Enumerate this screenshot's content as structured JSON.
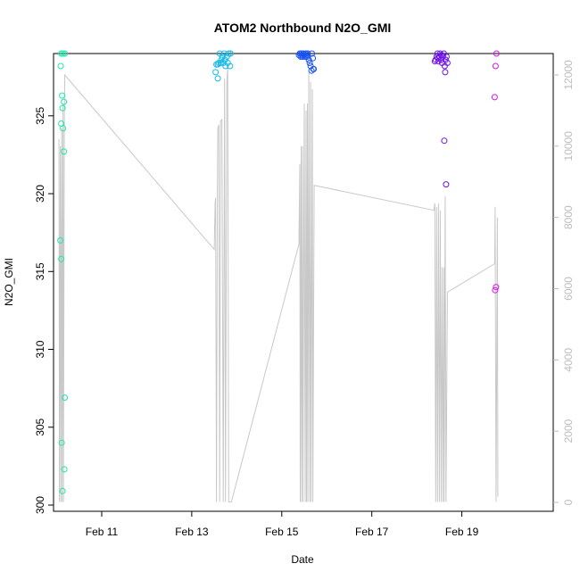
{
  "chart_data": {
    "type": "scatter",
    "title": "ATOM2 Northbound N2O_GMI",
    "xlabel": "Date",
    "ylabel": "N2O_GMI",
    "x_unit": "day of February 2017",
    "xlim": [
      9.93,
      21.03
    ],
    "ylim": [
      299.6,
      329.0
    ],
    "x_ticks": [
      {
        "value": 11,
        "label": "Feb 11"
      },
      {
        "value": 13,
        "label": "Feb 13"
      },
      {
        "value": 15,
        "label": "Feb 15"
      },
      {
        "value": 17,
        "label": "Feb 17"
      },
      {
        "value": 19,
        "label": "Feb 19"
      }
    ],
    "y_ticks": [
      300,
      305,
      310,
      315,
      320,
      325
    ],
    "y2_ticks": [
      0,
      2000,
      4000,
      6000,
      8000,
      10000,
      12000
    ],
    "y2lim": [
      -250,
      12600
    ],
    "grid": false,
    "legend": "none",
    "series": [
      {
        "color": "#1ee8a8",
        "points": [
          [
            10.08,
            317.0
          ],
          [
            10.1,
            315.8
          ],
          [
            10.11,
            304.0
          ],
          [
            10.13,
            300.9
          ],
          [
            10.17,
            302.3
          ],
          [
            10.18,
            306.9
          ],
          [
            10.1,
            324.5
          ],
          [
            10.13,
            325.5
          ],
          [
            10.16,
            325.9
          ],
          [
            10.12,
            326.3
          ],
          [
            10.09,
            328.2
          ],
          [
            10.1,
            329.0
          ],
          [
            10.14,
            329.0
          ],
          [
            10.18,
            329.0
          ],
          [
            10.16,
            322.7
          ],
          [
            10.14,
            324.2
          ]
        ]
      },
      {
        "color": "#14b8e8",
        "points": [
          [
            13.53,
            327.8
          ],
          [
            13.55,
            328.3
          ],
          [
            13.58,
            328.3
          ],
          [
            13.6,
            328.4
          ],
          [
            13.62,
            329.0
          ],
          [
            13.64,
            328.4
          ],
          [
            13.58,
            327.4
          ],
          [
            13.7,
            328.4
          ],
          [
            13.72,
            329.0
          ],
          [
            13.75,
            328.2
          ],
          [
            13.78,
            328.8
          ],
          [
            13.8,
            328.4
          ],
          [
            13.82,
            329.0
          ],
          [
            13.85,
            328.2
          ],
          [
            13.86,
            329.0
          ],
          [
            13.66,
            328.6
          ],
          [
            13.68,
            328.8
          ],
          [
            13.74,
            328.6
          ]
        ]
      },
      {
        "color": "#1852f0",
        "points": [
          [
            15.38,
            328.9
          ],
          [
            15.4,
            329.0
          ],
          [
            15.42,
            328.8
          ],
          [
            15.44,
            329.0
          ],
          [
            15.46,
            328.8
          ],
          [
            15.48,
            329.0
          ],
          [
            15.5,
            328.9
          ],
          [
            15.52,
            328.8
          ],
          [
            15.54,
            329.0
          ],
          [
            15.56,
            328.8
          ],
          [
            15.58,
            329.0
          ],
          [
            15.6,
            328.6
          ],
          [
            15.62,
            328.4
          ],
          [
            15.64,
            328.2
          ],
          [
            15.66,
            327.9
          ],
          [
            15.67,
            329.0
          ],
          [
            15.69,
            328.7
          ],
          [
            15.7,
            328.0
          ],
          [
            15.71,
            328.0
          ],
          [
            15.45,
            328.9
          ],
          [
            15.57,
            328.9
          ]
        ]
      },
      {
        "color": "#6e14e8",
        "points": [
          [
            18.4,
            328.5
          ],
          [
            18.42,
            328.6
          ],
          [
            18.44,
            328.8
          ],
          [
            18.46,
            329.0
          ],
          [
            18.48,
            328.5
          ],
          [
            18.5,
            328.8
          ],
          [
            18.52,
            329.0
          ],
          [
            18.54,
            328.6
          ],
          [
            18.56,
            328.4
          ],
          [
            18.58,
            328.8
          ],
          [
            18.6,
            329.0
          ],
          [
            18.62,
            328.2
          ],
          [
            18.63,
            327.8
          ],
          [
            18.64,
            328.6
          ],
          [
            18.66,
            328.8
          ],
          [
            18.68,
            328.4
          ],
          [
            18.61,
            323.4
          ],
          [
            18.65,
            320.6
          ],
          [
            18.47,
            328.7
          ],
          [
            18.55,
            328.9
          ]
        ]
      },
      {
        "color": "#d614e8",
        "points": [
          [
            19.73,
            326.2
          ],
          [
            19.75,
            328.2
          ],
          [
            19.77,
            329.0
          ],
          [
            19.74,
            313.8
          ],
          [
            19.76,
            314.0
          ]
        ]
      }
    ],
    "secondary_line": {
      "color": "#c8c8c8",
      "axis": "right",
      "points": [
        [
          10.05,
          10200
        ],
        [
          10.06,
          12
        ],
        [
          10.08,
          10000
        ],
        [
          10.09,
          12
        ],
        [
          10.11,
          10500
        ],
        [
          10.12,
          12
        ],
        [
          10.14,
          11200
        ],
        [
          10.15,
          12
        ],
        [
          10.17,
          10800
        ],
        [
          10.18,
          12000
        ],
        [
          13.5,
          7100
        ],
        [
          13.52,
          8400
        ],
        [
          13.53,
          8550
        ],
        [
          13.55,
          12
        ],
        [
          13.57,
          8700
        ],
        [
          13.58,
          10500
        ],
        [
          13.6,
          10600
        ],
        [
          13.62,
          12
        ],
        [
          13.64,
          10700
        ],
        [
          13.67,
          10750
        ],
        [
          13.7,
          12
        ],
        [
          13.73,
          11900
        ],
        [
          13.75,
          12
        ],
        [
          13.78,
          11800
        ],
        [
          13.8,
          12200
        ],
        [
          13.82,
          12
        ],
        [
          13.88,
          12
        ],
        [
          15.38,
          7250
        ],
        [
          15.4,
          9500
        ],
        [
          15.41,
          12
        ],
        [
          15.43,
          10000
        ],
        [
          15.44,
          12
        ],
        [
          15.46,
          10000
        ],
        [
          15.47,
          12
        ],
        [
          15.5,
          11200
        ],
        [
          15.52,
          12
        ],
        [
          15.54,
          11000
        ],
        [
          15.55,
          12
        ],
        [
          15.57,
          11200
        ],
        [
          15.58,
          12
        ],
        [
          15.6,
          12100
        ],
        [
          15.62,
          12
        ],
        [
          15.64,
          11800
        ],
        [
          15.65,
          12
        ],
        [
          15.68,
          11600
        ],
        [
          15.69,
          12
        ],
        [
          15.72,
          8900
        ],
        [
          18.38,
          8200
        ],
        [
          18.4,
          8400
        ],
        [
          18.42,
          12
        ],
        [
          18.44,
          8300
        ],
        [
          18.46,
          12
        ],
        [
          18.48,
          8400
        ],
        [
          18.5,
          12
        ],
        [
          18.52,
          8200
        ],
        [
          18.54,
          12
        ],
        [
          18.56,
          6600
        ],
        [
          18.58,
          12
        ],
        [
          18.6,
          6600
        ],
        [
          18.61,
          12
        ],
        [
          18.63,
          8600
        ],
        [
          18.65,
          12
        ],
        [
          18.68,
          5900
        ],
        [
          19.73,
          6700
        ],
        [
          19.74,
          8300
        ],
        [
          19.76,
          12
        ],
        [
          19.79,
          8000
        ],
        [
          19.8,
          160
        ]
      ]
    }
  }
}
